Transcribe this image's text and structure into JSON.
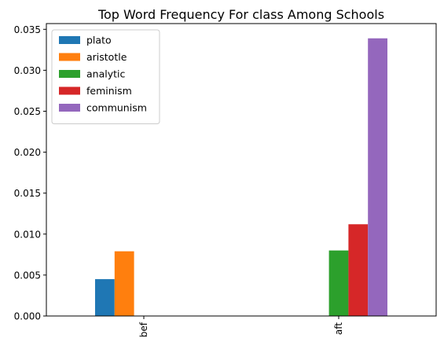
{
  "chart_data": {
    "type": "bar",
    "title": "Top Word Frequency For class Among Schools",
    "xlabel": "",
    "ylabel": "",
    "categories": [
      "bef",
      "aft"
    ],
    "series": [
      {
        "name": "plato",
        "color": "#1f77b4",
        "values": [
          0.0045,
          0.0
        ]
      },
      {
        "name": "aristotle",
        "color": "#ff7f0e",
        "values": [
          0.0079,
          0.0
        ]
      },
      {
        "name": "analytic",
        "color": "#2ca02c",
        "values": [
          0.0,
          0.008
        ]
      },
      {
        "name": "feminism",
        "color": "#d62728",
        "values": [
          0.0,
          0.0112
        ]
      },
      {
        "name": "communism",
        "color": "#9467bd",
        "values": [
          0.0,
          0.0339
        ]
      }
    ],
    "ylim": [
      0,
      0.0357
    ],
    "yticks": [
      "0.000",
      "0.005",
      "0.010",
      "0.015",
      "0.020",
      "0.025",
      "0.030",
      "0.035"
    ],
    "ytick_values": [
      0,
      0.005,
      0.01,
      0.015,
      0.02,
      0.025,
      0.03,
      0.035
    ],
    "grid": false,
    "legend_position": "top-left"
  }
}
